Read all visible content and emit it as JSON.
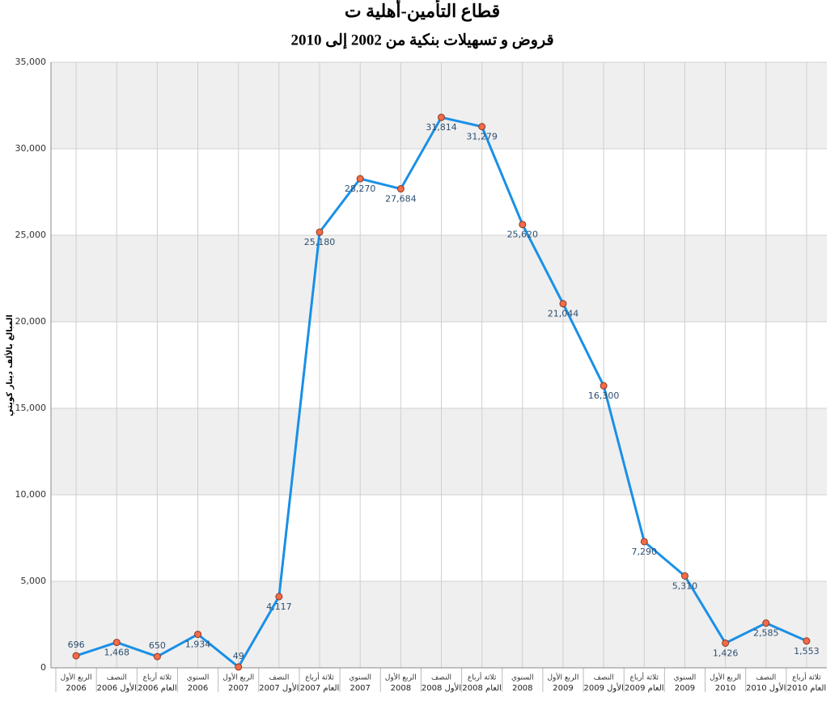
{
  "chart_data": {
    "type": "line",
    "title": "قطاع التأمين-أهلية ت",
    "subtitle": "قروض و تسهيلات بنكية من 2002 إلى 2010",
    "y_label": "المبالغ بالألف دينار كويتي",
    "categories": [
      [
        "الربع الأول",
        "2006"
      ],
      [
        "النصف",
        "الأول 2006"
      ],
      [
        "ثلاثة أرباع",
        "العام 2006"
      ],
      [
        "السنوي",
        "2006"
      ],
      [
        "الربع الأول",
        "2007"
      ],
      [
        "النصف",
        "الأول 2007"
      ],
      [
        "ثلاثة أرباع",
        "العام 2007"
      ],
      [
        "السنوي",
        "2007"
      ],
      [
        "الربع الأول",
        "2008"
      ],
      [
        "النصف",
        "الأول 2008"
      ],
      [
        "ثلاثة أرباع",
        "العام 2008"
      ],
      [
        "السنوي",
        "2008"
      ],
      [
        "الربع الأول",
        "2009"
      ],
      [
        "النصف",
        "الأول 2009"
      ],
      [
        "ثلاثة أرباع",
        "العام 2009"
      ],
      [
        "السنوي",
        "2009"
      ],
      [
        "الربع الأول",
        "2010"
      ],
      [
        "النصف",
        "الأول 2010"
      ],
      [
        "ثلاثة أرباع",
        "العام 2010"
      ]
    ],
    "values": [
      696,
      1468,
      650,
      1934,
      49,
      4117,
      25180,
      28270,
      27684,
      31814,
      31279,
      25620,
      21044,
      16300,
      7290,
      5310,
      1426,
      2585,
      1553
    ],
    "value_labels": [
      "696",
      "1,468",
      "650",
      "1,934",
      "49",
      "4,117",
      "25,180",
      "28,270",
      "27,684",
      "31,814",
      "31,279",
      "25,620",
      "21,044",
      "16,300",
      "7,290",
      "5,310",
      "1,426",
      "2,585",
      "1,553"
    ],
    "color": "#1a90e6",
    "marker_color": "#f26b4a",
    "ylim": [
      0,
      35000
    ],
    "yticks": [
      {
        "value": 0,
        "label": "0"
      },
      {
        "value": 5000,
        "label": "5,000"
      },
      {
        "value": 10000,
        "label": "10,000"
      },
      {
        "value": 15000,
        "label": "15,000"
      },
      {
        "value": 20000,
        "label": "20,000"
      },
      {
        "value": 25000,
        "label": "25,000"
      },
      {
        "value": 30000,
        "label": "30,000"
      },
      {
        "value": 35000,
        "label": "35,000"
      }
    ],
    "grid": true
  }
}
